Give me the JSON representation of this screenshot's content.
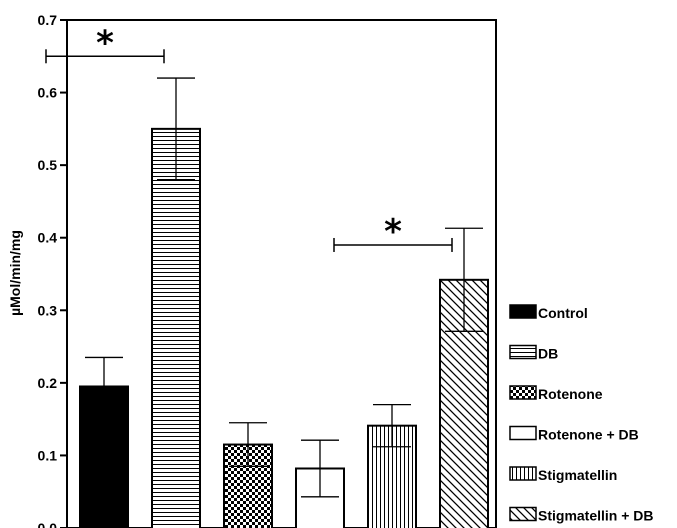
{
  "chart_data": {
    "type": "bar",
    "title": "",
    "xlabel": "",
    "ylabel": "µMol/min/mg",
    "ylim": [
      0,
      0.7
    ],
    "yticks": [
      "0.0",
      "0.1",
      "0.2",
      "0.3",
      "0.4",
      "0.5",
      "0.6",
      "0.7"
    ],
    "grid": false,
    "legend_position": "right",
    "categories": [
      "Control",
      "DB",
      "Rotenone",
      "Rotenone + DB",
      "Stigmatellin",
      "Stigmatellin + DB"
    ],
    "values": [
      0.195,
      0.55,
      0.115,
      0.082,
      0.141,
      0.342
    ],
    "errors": [
      0.04,
      0.07,
      0.03,
      0.039,
      0.029,
      0.071
    ],
    "fills": [
      "solid",
      "horizontal-lines",
      "checkerboard",
      "empty",
      "vertical-lines",
      "diagonal-lines"
    ],
    "significance": [
      {
        "label": "*",
        "from": 0,
        "to": 1,
        "y": 0.65
      },
      {
        "label": "*",
        "from": 4,
        "to": 5,
        "y": 0.39
      }
    ]
  }
}
